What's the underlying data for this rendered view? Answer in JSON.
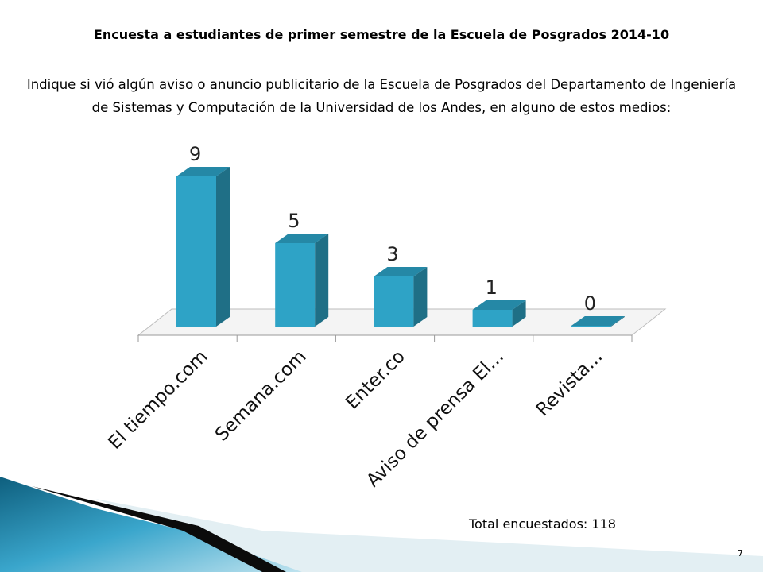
{
  "slide": {
    "title": "Encuesta a estudiantes de primer semestre de la Escuela de Posgrados 2014-10",
    "question": "Indique si vió algún aviso o anuncio publicitario de la Escuela de Posgrados del Departamento de Ingeniería de Sistemas y Computación de la Universidad de los Andes, en alguno de estos medios:",
    "footer_note": "Total encuestados: 118",
    "page_number": "7"
  },
  "colors": {
    "bar_front": "#2ea3c6",
    "bar_side": "#1f6f86",
    "bar_top": "#2588a6",
    "floor": "#f4f4f4",
    "floor_line": "#bdbdbd"
  },
  "chart_data": {
    "type": "bar",
    "style": "3d-column",
    "categories": [
      "El tiempo.com",
      "Semana.com",
      "Enter.co",
      "Aviso de prensa El...",
      "Revista..."
    ],
    "values": [
      9,
      5,
      3,
      1,
      0
    ],
    "data_labels": [
      "9",
      "5",
      "3",
      "1",
      "0"
    ],
    "title": "",
    "xlabel": "",
    "ylabel": "",
    "ylim": [
      0,
      9
    ],
    "grid": false,
    "legend": "none"
  }
}
